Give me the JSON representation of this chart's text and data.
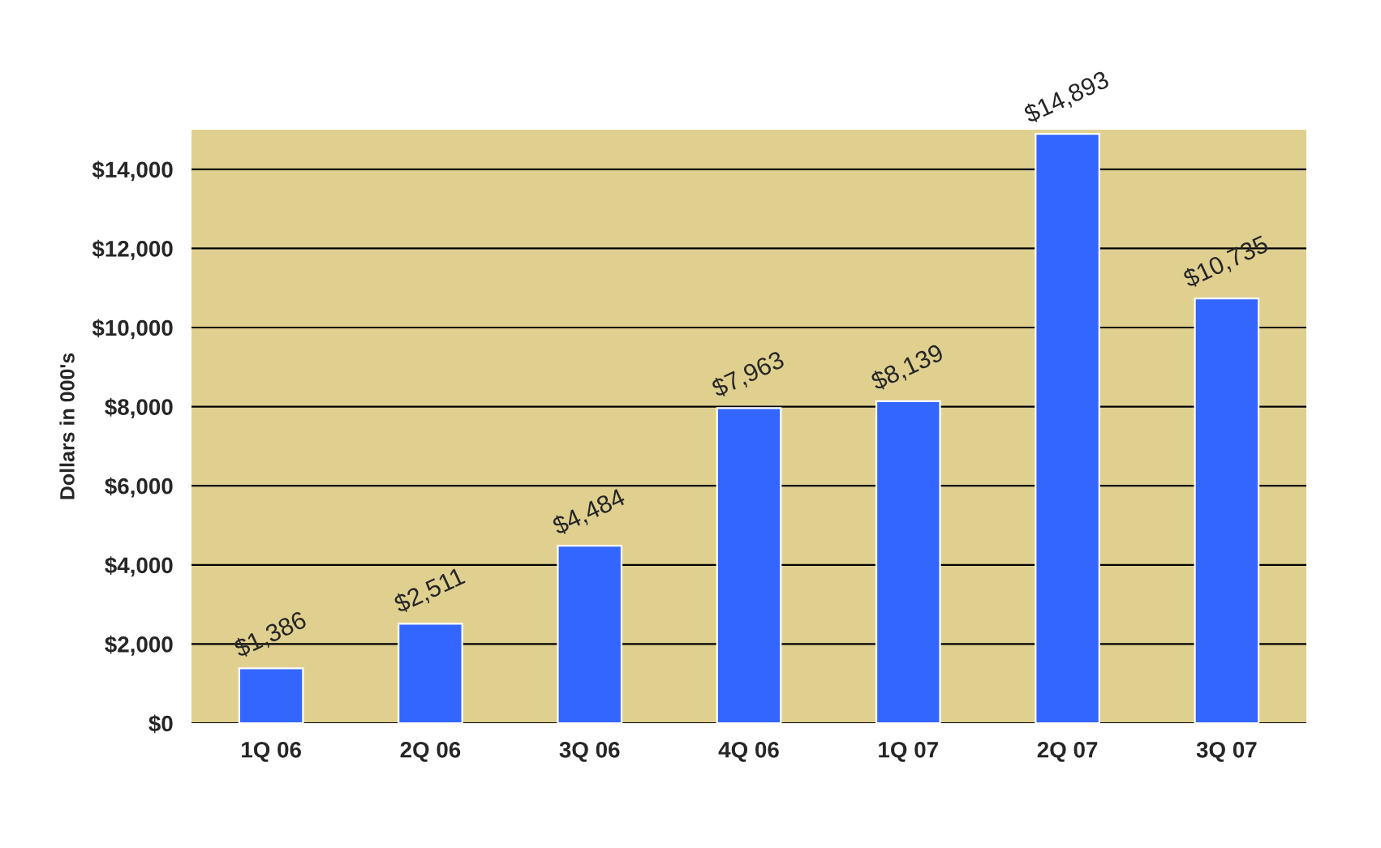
{
  "chart_data": {
    "type": "bar",
    "ylabel": "Dollars in 000's",
    "categories": [
      "1Q 06",
      "2Q 06",
      "3Q 06",
      "4Q 06",
      "1Q 07",
      "2Q 07",
      "3Q 07"
    ],
    "values": [
      1386,
      2511,
      4484,
      7963,
      8139,
      14893,
      10735
    ],
    "value_labels": [
      "$1,386",
      "$2,511",
      "$4,484",
      "$7,963",
      "$8,139",
      "$14,893",
      "$10,735"
    ],
    "color": "#3366ff",
    "ylim": [
      0,
      15000
    ],
    "yticks": [
      {
        "value": 0,
        "label": "$0"
      },
      {
        "value": 2000,
        "label": "$2,000"
      },
      {
        "value": 4000,
        "label": "$4,000"
      },
      {
        "value": 6000,
        "label": "$6,000"
      },
      {
        "value": 8000,
        "label": "$8,000"
      },
      {
        "value": 10000,
        "label": "$10,000"
      },
      {
        "value": 12000,
        "label": "$12,000"
      },
      {
        "value": 14000,
        "label": "$14,000"
      }
    ],
    "grid": "y",
    "legend": false
  }
}
